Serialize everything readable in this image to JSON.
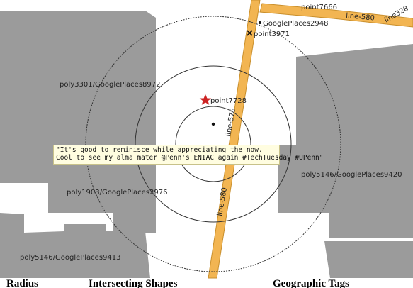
{
  "colors": {
    "background": "#ffffff",
    "polygon_fill": "#9b9b9b",
    "road_fill": "#f2b552",
    "road_edge": "#c98f2c",
    "circle_stroke": "#333333",
    "star": "#cc2222"
  },
  "labels": {
    "poly_top_left": "poly3301/GooglePlaces8972",
    "poly_mid_left": "poly1903/GooglePlaces2976",
    "poly_right": "poly5146/GooglePlaces9420",
    "poly_bottom_left": "poly5146/GooglePlaces9413",
    "point_star": "point7728",
    "point_x": "point3971",
    "point_dot": "GooglePlaces2948",
    "point_top": "point7666",
    "line_580_top": "line-580",
    "line_575": "line-575",
    "line_580": "line-580",
    "line_top_right": "line328"
  },
  "tweet": {
    "line1": "\"It's good to reminisce while appreciating the now.",
    "line2": "Cool to see my alma mater @Penn's ENIAC again #TechTuesday #UPenn\""
  },
  "footer": {
    "col1": "Radius",
    "col2": "Intersecting Shapes",
    "col3": "Geographic Tags"
  },
  "icons": {
    "star": "star-marker-icon",
    "x": "x-marker-icon",
    "dot": "dot-marker-icon",
    "center": "center-point-icon"
  }
}
